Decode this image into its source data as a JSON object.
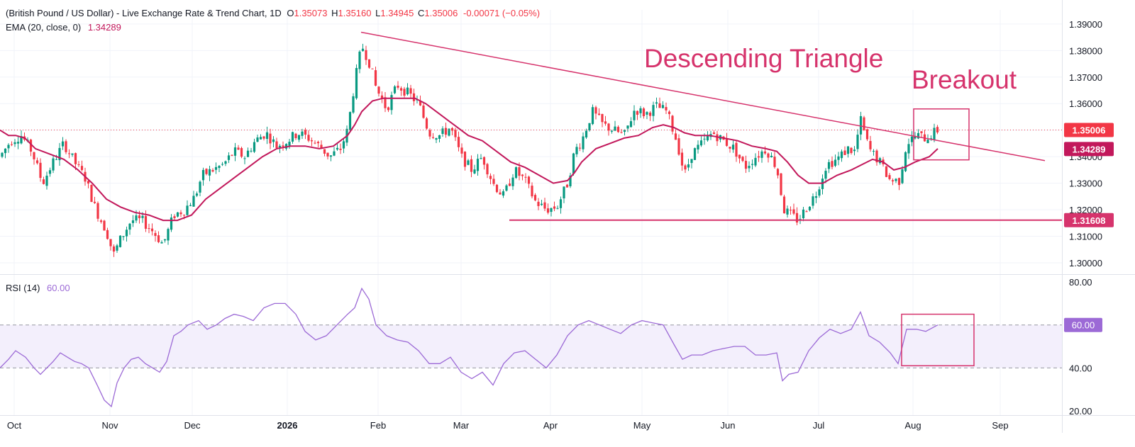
{
  "header": {
    "symbol": "(British Pound / US Dollar) - Live Exchange Rate & Trend Chart, 1D",
    "open_label": "O",
    "open": "1.35073",
    "high_label": "H",
    "high": "1.35160",
    "low_label": "L",
    "low": "1.34945",
    "close_label": "C",
    "close": "1.35006",
    "change": "-0.00071 (−0.05%)",
    "ema_label": "EMA (20, close, 0)",
    "ema_value": "1.34289",
    "rsi_label": "RSI (14)",
    "rsi_value": "60.00"
  },
  "annotations": {
    "triangle": "Descending Triangle",
    "breakout": "Breakout"
  },
  "colors": {
    "up": "#089981",
    "down": "#f23645",
    "ema": "#c2185b",
    "trend": "#d6336c",
    "rsi": "#9c6ad6",
    "rsi_band": "#f3effc",
    "grid": "#f0f3fa"
  },
  "chart_data": [
    {
      "type": "candlestick",
      "title": "",
      "price_axis_ticks": [
        "1.39000",
        "1.38000",
        "1.37000",
        "1.36000",
        "1.35000",
        "1.34000",
        "1.33000",
        "1.32000",
        "1.31000",
        "1.30000"
      ],
      "ylim": [
        1.296,
        1.3953
      ],
      "time_axis_ticks": [
        "Oct",
        "Nov",
        "Dec",
        "2026",
        "Feb",
        "Mar",
        "Apr",
        "May",
        "Jun",
        "Jul",
        "Aug",
        "Sep"
      ],
      "price_labels": [
        {
          "text": "1.35006",
          "value": 1.35006,
          "color": "#f23645"
        },
        {
          "text": "1.34289",
          "value": 1.34289,
          "color": "#c2185b"
        },
        {
          "text": "1.31608",
          "value": 1.31608,
          "color": "#d6336c"
        }
      ],
      "ema_points": [
        [
          0,
          1.35
        ],
        [
          12,
          1.348
        ],
        [
          22,
          1.348
        ],
        [
          35,
          1.347
        ],
        [
          50,
          1.343
        ],
        [
          70,
          1.341
        ],
        [
          90,
          1.339
        ],
        [
          110,
          1.335
        ],
        [
          130,
          1.33
        ],
        [
          150,
          1.324
        ],
        [
          170,
          1.321
        ],
        [
          190,
          1.319
        ],
        [
          210,
          1.318
        ],
        [
          230,
          1.316
        ],
        [
          250,
          1.316
        ],
        [
          270,
          1.318
        ],
        [
          290,
          1.324
        ],
        [
          310,
          1.328
        ],
        [
          330,
          1.332
        ],
        [
          350,
          1.336
        ],
        [
          370,
          1.34
        ],
        [
          390,
          1.343
        ],
        [
          410,
          1.344
        ],
        [
          430,
          1.344
        ],
        [
          450,
          1.343
        ],
        [
          470,
          1.344
        ],
        [
          490,
          1.348
        ],
        [
          500,
          1.352
        ],
        [
          510,
          1.357
        ],
        [
          525,
          1.361
        ],
        [
          540,
          1.362
        ],
        [
          555,
          1.362
        ],
        [
          570,
          1.362
        ],
        [
          585,
          1.362
        ],
        [
          600,
          1.36
        ],
        [
          620,
          1.356
        ],
        [
          640,
          1.352
        ],
        [
          660,
          1.348
        ],
        [
          680,
          1.346
        ],
        [
          700,
          1.342
        ],
        [
          720,
          1.338
        ],
        [
          740,
          1.336
        ],
        [
          760,
          1.333
        ],
        [
          780,
          1.33
        ],
        [
          800,
          1.331
        ],
        [
          810,
          1.334
        ],
        [
          820,
          1.338
        ],
        [
          840,
          1.343
        ],
        [
          860,
          1.345
        ],
        [
          880,
          1.347
        ],
        [
          900,
          1.348
        ],
        [
          920,
          1.351
        ],
        [
          935,
          1.352
        ],
        [
          950,
          1.351
        ],
        [
          965,
          1.349
        ],
        [
          980,
          1.348
        ],
        [
          1000,
          1.348
        ],
        [
          1020,
          1.347
        ],
        [
          1040,
          1.346
        ],
        [
          1060,
          1.344
        ],
        [
          1080,
          1.343
        ],
        [
          1095,
          1.342
        ],
        [
          1110,
          1.338
        ],
        [
          1125,
          1.333
        ],
        [
          1140,
          1.33
        ],
        [
          1160,
          1.33
        ],
        [
          1180,
          1.333
        ],
        [
          1200,
          1.335
        ],
        [
          1215,
          1.337
        ],
        [
          1230,
          1.339
        ],
        [
          1245,
          1.338
        ],
        [
          1260,
          1.335
        ],
        [
          1275,
          1.336
        ],
        [
          1290,
          1.338
        ],
        [
          1310,
          1.34
        ],
        [
          1322,
          1.343
        ]
      ],
      "descending_trendline": [
        [
          509,
          1.3869
        ],
        [
          1473,
          1.3385
        ]
      ],
      "support_line": [
        [
          718,
          1.3161
        ],
        [
          1497,
          1.3161
        ]
      ],
      "candle_path": [
        [
          0,
          1.34
        ],
        [
          15,
          1.346
        ],
        [
          30,
          1.348
        ],
        [
          45,
          1.342
        ],
        [
          60,
          1.33
        ],
        [
          75,
          1.338
        ],
        [
          90,
          1.345
        ],
        [
          105,
          1.338
        ],
        [
          120,
          1.332
        ],
        [
          135,
          1.32
        ],
        [
          150,
          1.312
        ],
        [
          160,
          1.303
        ],
        [
          170,
          1.309
        ],
        [
          185,
          1.316
        ],
        [
          200,
          1.316
        ],
        [
          215,
          1.312
        ],
        [
          230,
          1.307
        ],
        [
          245,
          1.318
        ],
        [
          260,
          1.32
        ],
        [
          275,
          1.325
        ],
        [
          285,
          1.333
        ],
        [
          300,
          1.335
        ],
        [
          315,
          1.337
        ],
        [
          330,
          1.342
        ],
        [
          345,
          1.34
        ],
        [
          360,
          1.346
        ],
        [
          375,
          1.349
        ],
        [
          390,
          1.344
        ],
        [
          405,
          1.346
        ],
        [
          420,
          1.349
        ],
        [
          435,
          1.347
        ],
        [
          450,
          1.344
        ],
        [
          465,
          1.34
        ],
        [
          480,
          1.343
        ],
        [
          490,
          1.35
        ],
        [
          500,
          1.368
        ],
        [
          510,
          1.382
        ],
        [
          520,
          1.376
        ],
        [
          530,
          1.366
        ],
        [
          545,
          1.358
        ],
        [
          560,
          1.367
        ],
        [
          575,
          1.364
        ],
        [
          590,
          1.36
        ],
        [
          605,
          1.349
        ],
        [
          620,
          1.348
        ],
        [
          635,
          1.351
        ],
        [
          650,
          1.34
        ],
        [
          665,
          1.335
        ],
        [
          680,
          1.34
        ],
        [
          695,
          1.33
        ],
        [
          710,
          1.325
        ],
        [
          725,
          1.335
        ],
        [
          740,
          1.331
        ],
        [
          755,
          1.323
        ],
        [
          770,
          1.32
        ],
        [
          785,
          1.321
        ],
        [
          800,
          1.33
        ],
        [
          810,
          1.342
        ],
        [
          820,
          1.346
        ],
        [
          835,
          1.357
        ],
        [
          850,
          1.352
        ],
        [
          865,
          1.35
        ],
        [
          880,
          1.348
        ],
        [
          895,
          1.358
        ],
        [
          910,
          1.356
        ],
        [
          925,
          1.359
        ],
        [
          940,
          1.357
        ],
        [
          955,
          1.345
        ],
        [
          965,
          1.333
        ],
        [
          975,
          1.341
        ],
        [
          990,
          1.345
        ],
        [
          1005,
          1.349
        ],
        [
          1020,
          1.346
        ],
        [
          1035,
          1.343
        ],
        [
          1050,
          1.336
        ],
        [
          1065,
          1.34
        ],
        [
          1080,
          1.343
        ],
        [
          1095,
          1.336
        ],
        [
          1105,
          1.32
        ],
        [
          1115,
          1.318
        ],
        [
          1125,
          1.316
        ],
        [
          1135,
          1.32
        ],
        [
          1150,
          1.326
        ],
        [
          1165,
          1.337
        ],
        [
          1180,
          1.339
        ],
        [
          1195,
          1.343
        ],
        [
          1205,
          1.342
        ],
        [
          1213,
          1.354
        ],
        [
          1225,
          1.343
        ],
        [
          1240,
          1.338
        ],
        [
          1255,
          1.331
        ],
        [
          1268,
          1.331
        ],
        [
          1278,
          1.345
        ],
        [
          1292,
          1.348
        ],
        [
          1305,
          1.347
        ],
        [
          1322,
          1.35
        ]
      ]
    },
    {
      "type": "line",
      "title": "",
      "series_label": "RSI (14)",
      "ylim": [
        18,
        83
      ],
      "y_ticks": [
        "80.00",
        "60.00",
        "40.00",
        "20.00"
      ],
      "band": [
        40,
        60
      ],
      "value_label": {
        "text": "60.00",
        "value": 60
      },
      "x": [
        0,
        12,
        22,
        36,
        48,
        57,
        66,
        75,
        85,
        95,
        105,
        115,
        125,
        137,
        147,
        157,
        165,
        175,
        185,
        195,
        205,
        215,
        225,
        235,
        245,
        255,
        265,
        280,
        292,
        305,
        317,
        330,
        343,
        357,
        372,
        387,
        402,
        417,
        430,
        445,
        460,
        475,
        490,
        500,
        510,
        520,
        530,
        545,
        560,
        575,
        590,
        605,
        620,
        635,
        650,
        665,
        680,
        695,
        710,
        725,
        740,
        755,
        770,
        785,
        800,
        815,
        830,
        845,
        860,
        875,
        890,
        905,
        920,
        935,
        950,
        962,
        975,
        990,
        1005,
        1020,
        1035,
        1050,
        1065,
        1080,
        1095,
        1103,
        1112,
        1125,
        1140,
        1155,
        1170,
        1185,
        1200,
        1213,
        1225,
        1240,
        1255,
        1266,
        1278,
        1292,
        1305,
        1322
      ],
      "y": [
        40,
        44,
        48,
        45,
        40,
        37,
        40,
        43,
        47,
        45,
        43,
        42,
        40,
        32,
        25,
        22,
        33,
        40,
        44,
        45,
        42,
        40,
        38,
        43,
        55,
        57,
        60,
        62,
        58,
        60,
        63,
        65,
        64,
        62,
        68,
        70,
        70,
        65,
        57,
        53,
        55,
        60,
        65,
        68,
        77,
        72,
        60,
        55,
        53,
        52,
        48,
        42,
        42,
        45,
        38,
        35,
        38,
        32,
        42,
        47,
        48,
        44,
        40,
        46,
        55,
        60,
        62,
        60,
        58,
        56,
        60,
        62,
        61,
        60,
        51,
        44,
        46,
        46,
        48,
        49,
        50,
        50,
        46,
        46,
        47,
        34,
        37,
        38,
        48,
        54,
        58,
        56,
        58,
        66,
        55,
        52,
        47,
        42,
        58,
        58,
        57,
        60
      ]
    }
  ]
}
